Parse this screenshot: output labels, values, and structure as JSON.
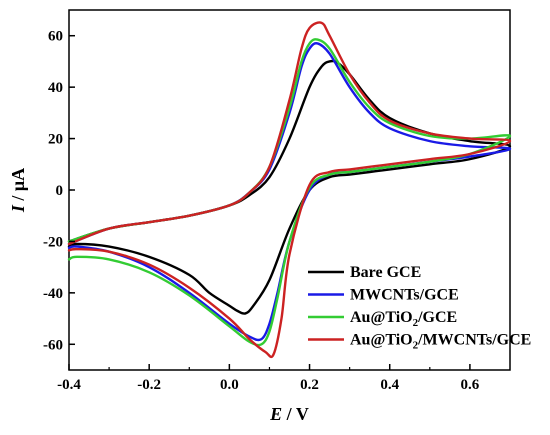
{
  "chart_data": {
    "type": "line",
    "title": "",
    "xlabel": {
      "var": "E",
      "unit": " / V"
    },
    "ylabel": {
      "var": "I",
      "unit": " / μA"
    },
    "xlim": [
      -0.4,
      0.7
    ],
    "ylim": [
      -70,
      70
    ],
    "x_ticks": [
      -0.4,
      -0.2,
      0.0,
      0.2,
      0.4,
      0.6
    ],
    "x_tick_labels": [
      "-0.4",
      "-0.2",
      "0.0",
      "0.2",
      "0.4",
      "0.6"
    ],
    "y_ticks": [
      -60,
      -40,
      -20,
      0,
      20,
      40,
      60
    ],
    "y_tick_labels": [
      "-60",
      "-40",
      "-20",
      "0",
      "20",
      "40",
      "60"
    ],
    "grid": false,
    "legend_position": "bottom-right",
    "series": [
      {
        "name": "Bare GCE",
        "legend": {
          "main": "Bare GCE"
        },
        "color": "#000000",
        "x": [
          -0.4,
          -0.3,
          -0.2,
          -0.1,
          0.0,
          0.05,
          0.1,
          0.15,
          0.2,
          0.23,
          0.25,
          0.27,
          0.3,
          0.35,
          0.4,
          0.5,
          0.6,
          0.7,
          0.6,
          0.5,
          0.4,
          0.35,
          0.3,
          0.25,
          0.2,
          0.15,
          0.1,
          0.06,
          0.04,
          0.02,
          0.0,
          -0.05,
          -0.1,
          -0.2,
          -0.3,
          -0.38,
          -0.4
        ],
        "y": [
          -20,
          -15,
          -12.5,
          -10,
          -6,
          -2,
          5,
          20,
          40,
          48,
          50,
          49.5,
          45,
          35,
          28,
          22,
          19,
          17,
          12,
          10,
          8,
          7,
          6,
          5,
          0,
          -15,
          -35,
          -45,
          -48,
          -47,
          -45,
          -40,
          -33,
          -26,
          -22,
          -21,
          -22
        ]
      },
      {
        "name": "MWCNTs/GCE",
        "legend": {
          "main": "MWCNTs/GCE"
        },
        "color": "#1a1ae6",
        "x": [
          -0.4,
          -0.3,
          -0.2,
          -0.1,
          0.0,
          0.05,
          0.1,
          0.15,
          0.18,
          0.2,
          0.22,
          0.25,
          0.3,
          0.35,
          0.4,
          0.5,
          0.6,
          0.7,
          0.6,
          0.5,
          0.4,
          0.35,
          0.3,
          0.25,
          0.2,
          0.15,
          0.12,
          0.1,
          0.08,
          0.05,
          0.0,
          -0.1,
          -0.2,
          -0.3,
          -0.38,
          -0.4
        ],
        "y": [
          -21,
          -15,
          -12.5,
          -10,
          -6,
          -1,
          8,
          30,
          48,
          55,
          57,
          53,
          40,
          30,
          24,
          19,
          17,
          16,
          13,
          11,
          9,
          8,
          7,
          6,
          0,
          -20,
          -40,
          -52,
          -58,
          -57,
          -52,
          -40,
          -30,
          -24,
          -22,
          -22.5
        ]
      },
      {
        "name": "Au@TiO2/GCE",
        "legend": {
          "main": "Au@TiO",
          "sub": "2",
          "tail": "/GCE"
        },
        "color": "#33cc33",
        "x": [
          -0.4,
          -0.3,
          -0.2,
          -0.1,
          0.0,
          0.05,
          0.1,
          0.15,
          0.18,
          0.2,
          0.22,
          0.25,
          0.3,
          0.35,
          0.4,
          0.5,
          0.6,
          0.7,
          0.6,
          0.5,
          0.4,
          0.35,
          0.3,
          0.25,
          0.2,
          0.15,
          0.12,
          0.1,
          0.08,
          0.05,
          0.0,
          -0.1,
          -0.2,
          -0.3,
          -0.38,
          -0.4
        ],
        "y": [
          -20,
          -15,
          -12.5,
          -10,
          -6,
          -1,
          9,
          32,
          50,
          57,
          58.5,
          55,
          42,
          32,
          26,
          21,
          20,
          21,
          14,
          11,
          9,
          8,
          7,
          6,
          1,
          -20,
          -42,
          -55,
          -60,
          -59,
          -53,
          -41,
          -32,
          -27,
          -26,
          -27
        ]
      },
      {
        "name": "Au@TiO2/MWCNTs/GCE",
        "legend": {
          "main": "Au@TiO",
          "sub": "2",
          "tail": "/MWCNTs/GCE"
        },
        "color": "#cc2222",
        "x": [
          -0.4,
          -0.3,
          -0.2,
          -0.1,
          0.0,
          0.05,
          0.1,
          0.15,
          0.18,
          0.2,
          0.23,
          0.25,
          0.3,
          0.35,
          0.4,
          0.5,
          0.6,
          0.7,
          0.6,
          0.5,
          0.4,
          0.35,
          0.3,
          0.25,
          0.2,
          0.15,
          0.13,
          0.11,
          0.09,
          0.05,
          0.0,
          -0.1,
          -0.2,
          -0.3,
          -0.38,
          -0.4
        ],
        "y": [
          -21,
          -15,
          -12.5,
          -10,
          -6,
          -1,
          9,
          35,
          55,
          63,
          65,
          60,
          45,
          34,
          27,
          22,
          20,
          19,
          14,
          12,
          10,
          9,
          8,
          7,
          2,
          -25,
          -50,
          -64,
          -63,
          -58,
          -50,
          -38,
          -29,
          -24,
          -23,
          -23.5
        ]
      }
    ]
  }
}
